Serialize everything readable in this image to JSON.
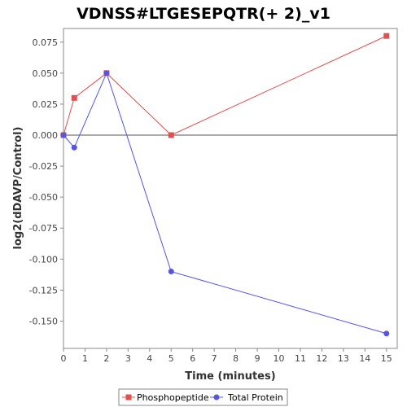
{
  "chart_data": {
    "type": "line",
    "title": "VDNSS#LTGESEPQTR(+ 2)_v1",
    "xlabel": "Time (minutes)",
    "ylabel": "log2(dDAVP/Control)",
    "xlim": [
      0,
      15.5
    ],
    "ylim": [
      -0.172,
      0.086
    ],
    "x_ticks": [
      0,
      1,
      2,
      3,
      4,
      5,
      6,
      7,
      8,
      9,
      10,
      11,
      12,
      13,
      14,
      15
    ],
    "y_ticks": [
      0.075,
      0.05,
      0.025,
      0.0,
      -0.025,
      -0.05,
      -0.075,
      -0.1,
      -0.125,
      -0.15
    ],
    "y_tick_labels": [
      "0.075",
      "0.050",
      "0.025",
      "0.000",
      "-0.025",
      "-0.050",
      "-0.075",
      "-0.100",
      "-0.125",
      "-0.150"
    ],
    "zero_line": true,
    "grid": false,
    "legend_position": "bottom",
    "series": [
      {
        "name": "Phosphopeptide",
        "color": "#e05050",
        "marker": "square",
        "x": [
          0,
          0.5,
          2,
          5,
          15
        ],
        "values": [
          0.0,
          0.03,
          0.05,
          0.0,
          0.08
        ]
      },
      {
        "name": "Total Protein",
        "color": "#5555e0",
        "marker": "circle",
        "x": [
          0,
          0.5,
          2,
          5,
          15
        ],
        "values": [
          0.0,
          -0.01,
          0.05,
          -0.11,
          -0.16
        ]
      }
    ]
  }
}
